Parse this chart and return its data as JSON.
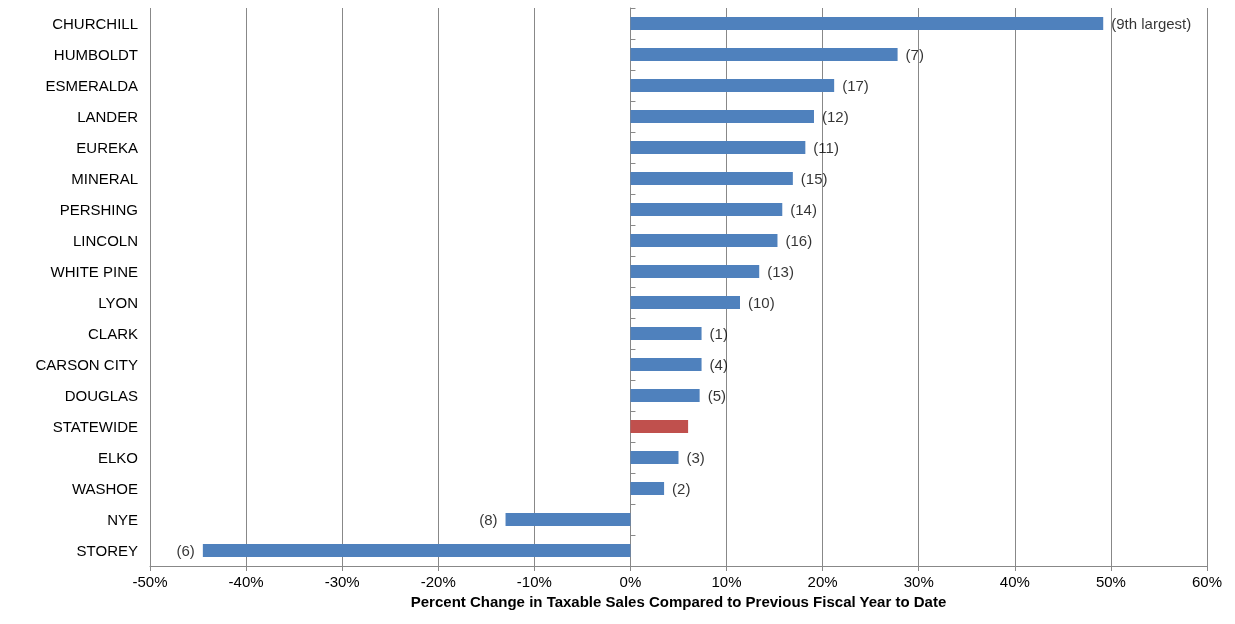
{
  "chart_data": {
    "type": "bar",
    "orientation": "horizontal",
    "xlabel": "Percent Change in Taxable Sales Compared to Previous Fiscal Year to Date",
    "categories": [
      "CHURCHILL",
      "HUMBOLDT",
      "ESMERALDA",
      "LANDER",
      "EUREKA",
      "MINERAL",
      "PERSHING",
      "LINCOLN",
      "WHITE PINE",
      "LYON",
      "CLARK",
      "CARSON CITY",
      "DOUGLAS",
      "STATEWIDE",
      "ELKO",
      "WASHOE",
      "NYE",
      "STOREY"
    ],
    "values": [
      49.2,
      27.8,
      21.2,
      19.1,
      18.2,
      16.9,
      15.8,
      15.3,
      13.4,
      11.4,
      7.4,
      7.4,
      7.2,
      6.0,
      5.0,
      3.5,
      -13.0,
      -44.5
    ],
    "annotations": [
      {
        "text": "(9th largest)",
        "x": 49.2,
        "y": "CHURCHILL"
      },
      {
        "text": "(7)",
        "x": 27.8,
        "y": "HUMBOLDT"
      },
      {
        "text": "(17)",
        "x": 21.2,
        "y": "ESMERALDA"
      },
      {
        "text": "(12)",
        "x": 19.1,
        "y": "LANDER"
      },
      {
        "text": "(11)",
        "x": 18.2,
        "y": "EUREKA"
      },
      {
        "text": "(15)",
        "x": 16.9,
        "y": "MINERAL"
      },
      {
        "text": "(14)",
        "x": 15.8,
        "y": "PERSHING"
      },
      {
        "text": "(16)",
        "x": 15.3,
        "y": "LINCOLN"
      },
      {
        "text": "(13)",
        "x": 13.4,
        "y": "WHITE PINE"
      },
      {
        "text": "(10)",
        "x": 11.4,
        "y": "LYON"
      },
      {
        "text": "(1)",
        "x": 7.4,
        "y": "CLARK"
      },
      {
        "text": "(4)",
        "x": 7.4,
        "y": "CARSON CITY"
      },
      {
        "text": "(5)",
        "x": 7.2,
        "y": "DOUGLAS"
      },
      {
        "text": "(3)",
        "x": 5.0,
        "y": "ELKO"
      },
      {
        "text": "(2)",
        "x": 3.5,
        "y": "WASHOE"
      },
      {
        "text": "(8)",
        "x": -13.0,
        "y": "NYE"
      },
      {
        "text": "(6)",
        "x": -44.5,
        "y": "STOREY"
      }
    ],
    "colors": [
      "#4f81bd",
      "#4f81bd",
      "#4f81bd",
      "#4f81bd",
      "#4f81bd",
      "#4f81bd",
      "#4f81bd",
      "#4f81bd",
      "#4f81bd",
      "#4f81bd",
      "#4f81bd",
      "#4f81bd",
      "#4f81bd",
      "#c0504d",
      "#4f81bd",
      "#4f81bd",
      "#4f81bd",
      "#4f81bd"
    ],
    "xlim": [
      -50,
      60
    ],
    "xticks": [
      {
        "value": -50,
        "label": "-50%"
      },
      {
        "value": -40,
        "label": "-40%"
      },
      {
        "value": -30,
        "label": "-30%"
      },
      {
        "value": -20,
        "label": "-20%"
      },
      {
        "value": -10,
        "label": "-10%"
      },
      {
        "value": 0,
        "label": "0%"
      },
      {
        "value": 10,
        "label": "10%"
      },
      {
        "value": 20,
        "label": "20%"
      },
      {
        "value": 30,
        "label": "30%"
      },
      {
        "value": 40,
        "label": "40%"
      },
      {
        "value": 50,
        "label": "50%"
      },
      {
        "value": 60,
        "label": "60%"
      }
    ],
    "grid": "x"
  }
}
